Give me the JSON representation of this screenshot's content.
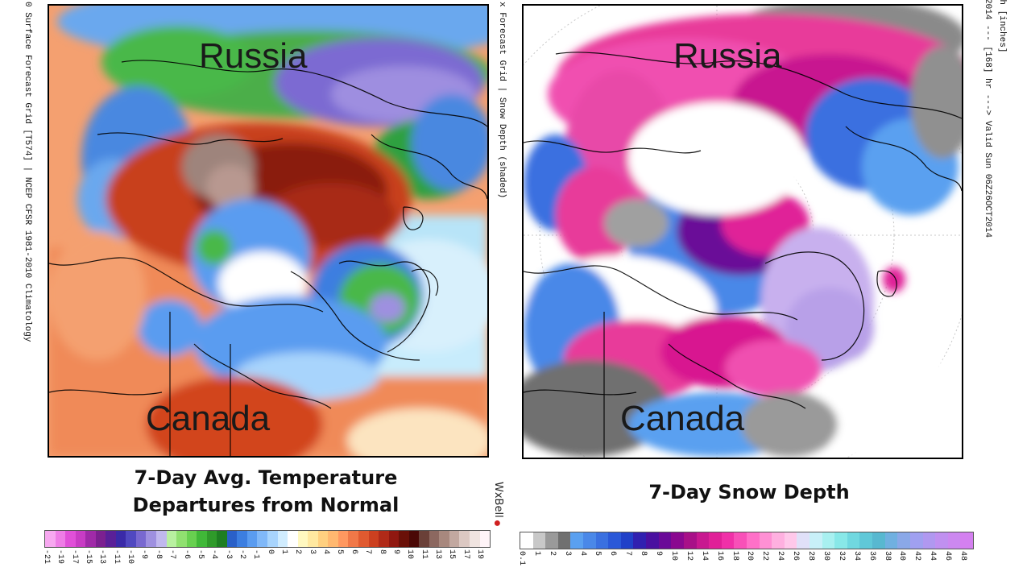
{
  "left_map": {
    "side_label": "0 Surface Forecast Grid [T574] | NCEP CFSR 1981-2010 Climatology",
    "region_top": "Russia",
    "region_bottom": "Canada",
    "caption_line1": "7-Day Avg. Temperature",
    "caption_line2": "Departures from Normal",
    "brand": "WxBell",
    "legend": {
      "colors": [
        "#f7a8f0",
        "#ee7de6",
        "#e050d8",
        "#c83cc4",
        "#a02aa8",
        "#7c2090",
        "#5a2098",
        "#3a2aa8",
        "#5048c0",
        "#7868d0",
        "#9e90e0",
        "#c0b8ee",
        "#b8f0a0",
        "#90e070",
        "#68d050",
        "#40b838",
        "#2f9a2a",
        "#1e7e22",
        "#2a60c8",
        "#3c7ee0",
        "#5a9cf0",
        "#80b8f8",
        "#a8d4fc",
        "#d0ecfe",
        "#ffffff",
        "#fff8c0",
        "#ffe8a0",
        "#ffd080",
        "#ffb870",
        "#ff9860",
        "#f07848",
        "#e05a30",
        "#cc4020",
        "#b02a18",
        "#901810",
        "#6a1008",
        "#4a0806",
        "#6a4038",
        "#8c6860",
        "#a8887e",
        "#c2a8a0",
        "#dcc8c2",
        "#f0e4e0",
        "#fff4f8"
      ],
      "ticks": [
        "-21",
        "-19",
        "-17",
        "-15",
        "-13",
        "-11",
        "-10",
        "-9",
        "-8",
        "-7",
        "-6",
        "-5",
        "-4",
        "-3",
        "-2",
        "-1",
        "0",
        "1",
        "2",
        "3",
        "4",
        "5",
        "6",
        "7",
        "8",
        "9",
        "10",
        "11",
        "13",
        "15",
        "17",
        "19"
      ]
    }
  },
  "right_map": {
    "side_label_line1": "Snow Depth [inches]",
    "side_label_line2": "2014 --- [168] hr ---> Valid Sun 06Z26OCT2014",
    "side_label_left": "x Forecast Grid | Snow Depth (shaded)",
    "region_top": "Russia",
    "region_bottom": "Canada",
    "caption": "7-Day Snow Depth",
    "legend": {
      "colors": [
        "#ffffff",
        "#c8c8c8",
        "#9a9a9a",
        "#707070",
        "#5aa0f0",
        "#4a88e8",
        "#3a70e0",
        "#2a58d8",
        "#2040c8",
        "#3020b0",
        "#4a10a0",
        "#6a0a98",
        "#8a0890",
        "#a81088",
        "#c81890",
        "#e02098",
        "#f030a8",
        "#f850b8",
        "#ff70c8",
        "#ff90d4",
        "#ffb0e0",
        "#ffc8ea",
        "#e0e0f8",
        "#c8f0f8",
        "#a8f0f0",
        "#88e8e8",
        "#70d8e0",
        "#60c8d8",
        "#58b8d0",
        "#70b0e0",
        "#8aa8e8",
        "#a0a0f0",
        "#b098f0",
        "#c090f0",
        "#cc88f0",
        "#d480f0"
      ],
      "ticks": [
        "0.1",
        "1",
        "2",
        "3",
        "4",
        "5",
        "6",
        "7",
        "8",
        "9",
        "10",
        "12",
        "14",
        "16",
        "18",
        "20",
        "22",
        "24",
        "26",
        "28",
        "30",
        "32",
        "34",
        "36",
        "38",
        "40",
        "42",
        "44",
        "46",
        "48"
      ]
    }
  }
}
